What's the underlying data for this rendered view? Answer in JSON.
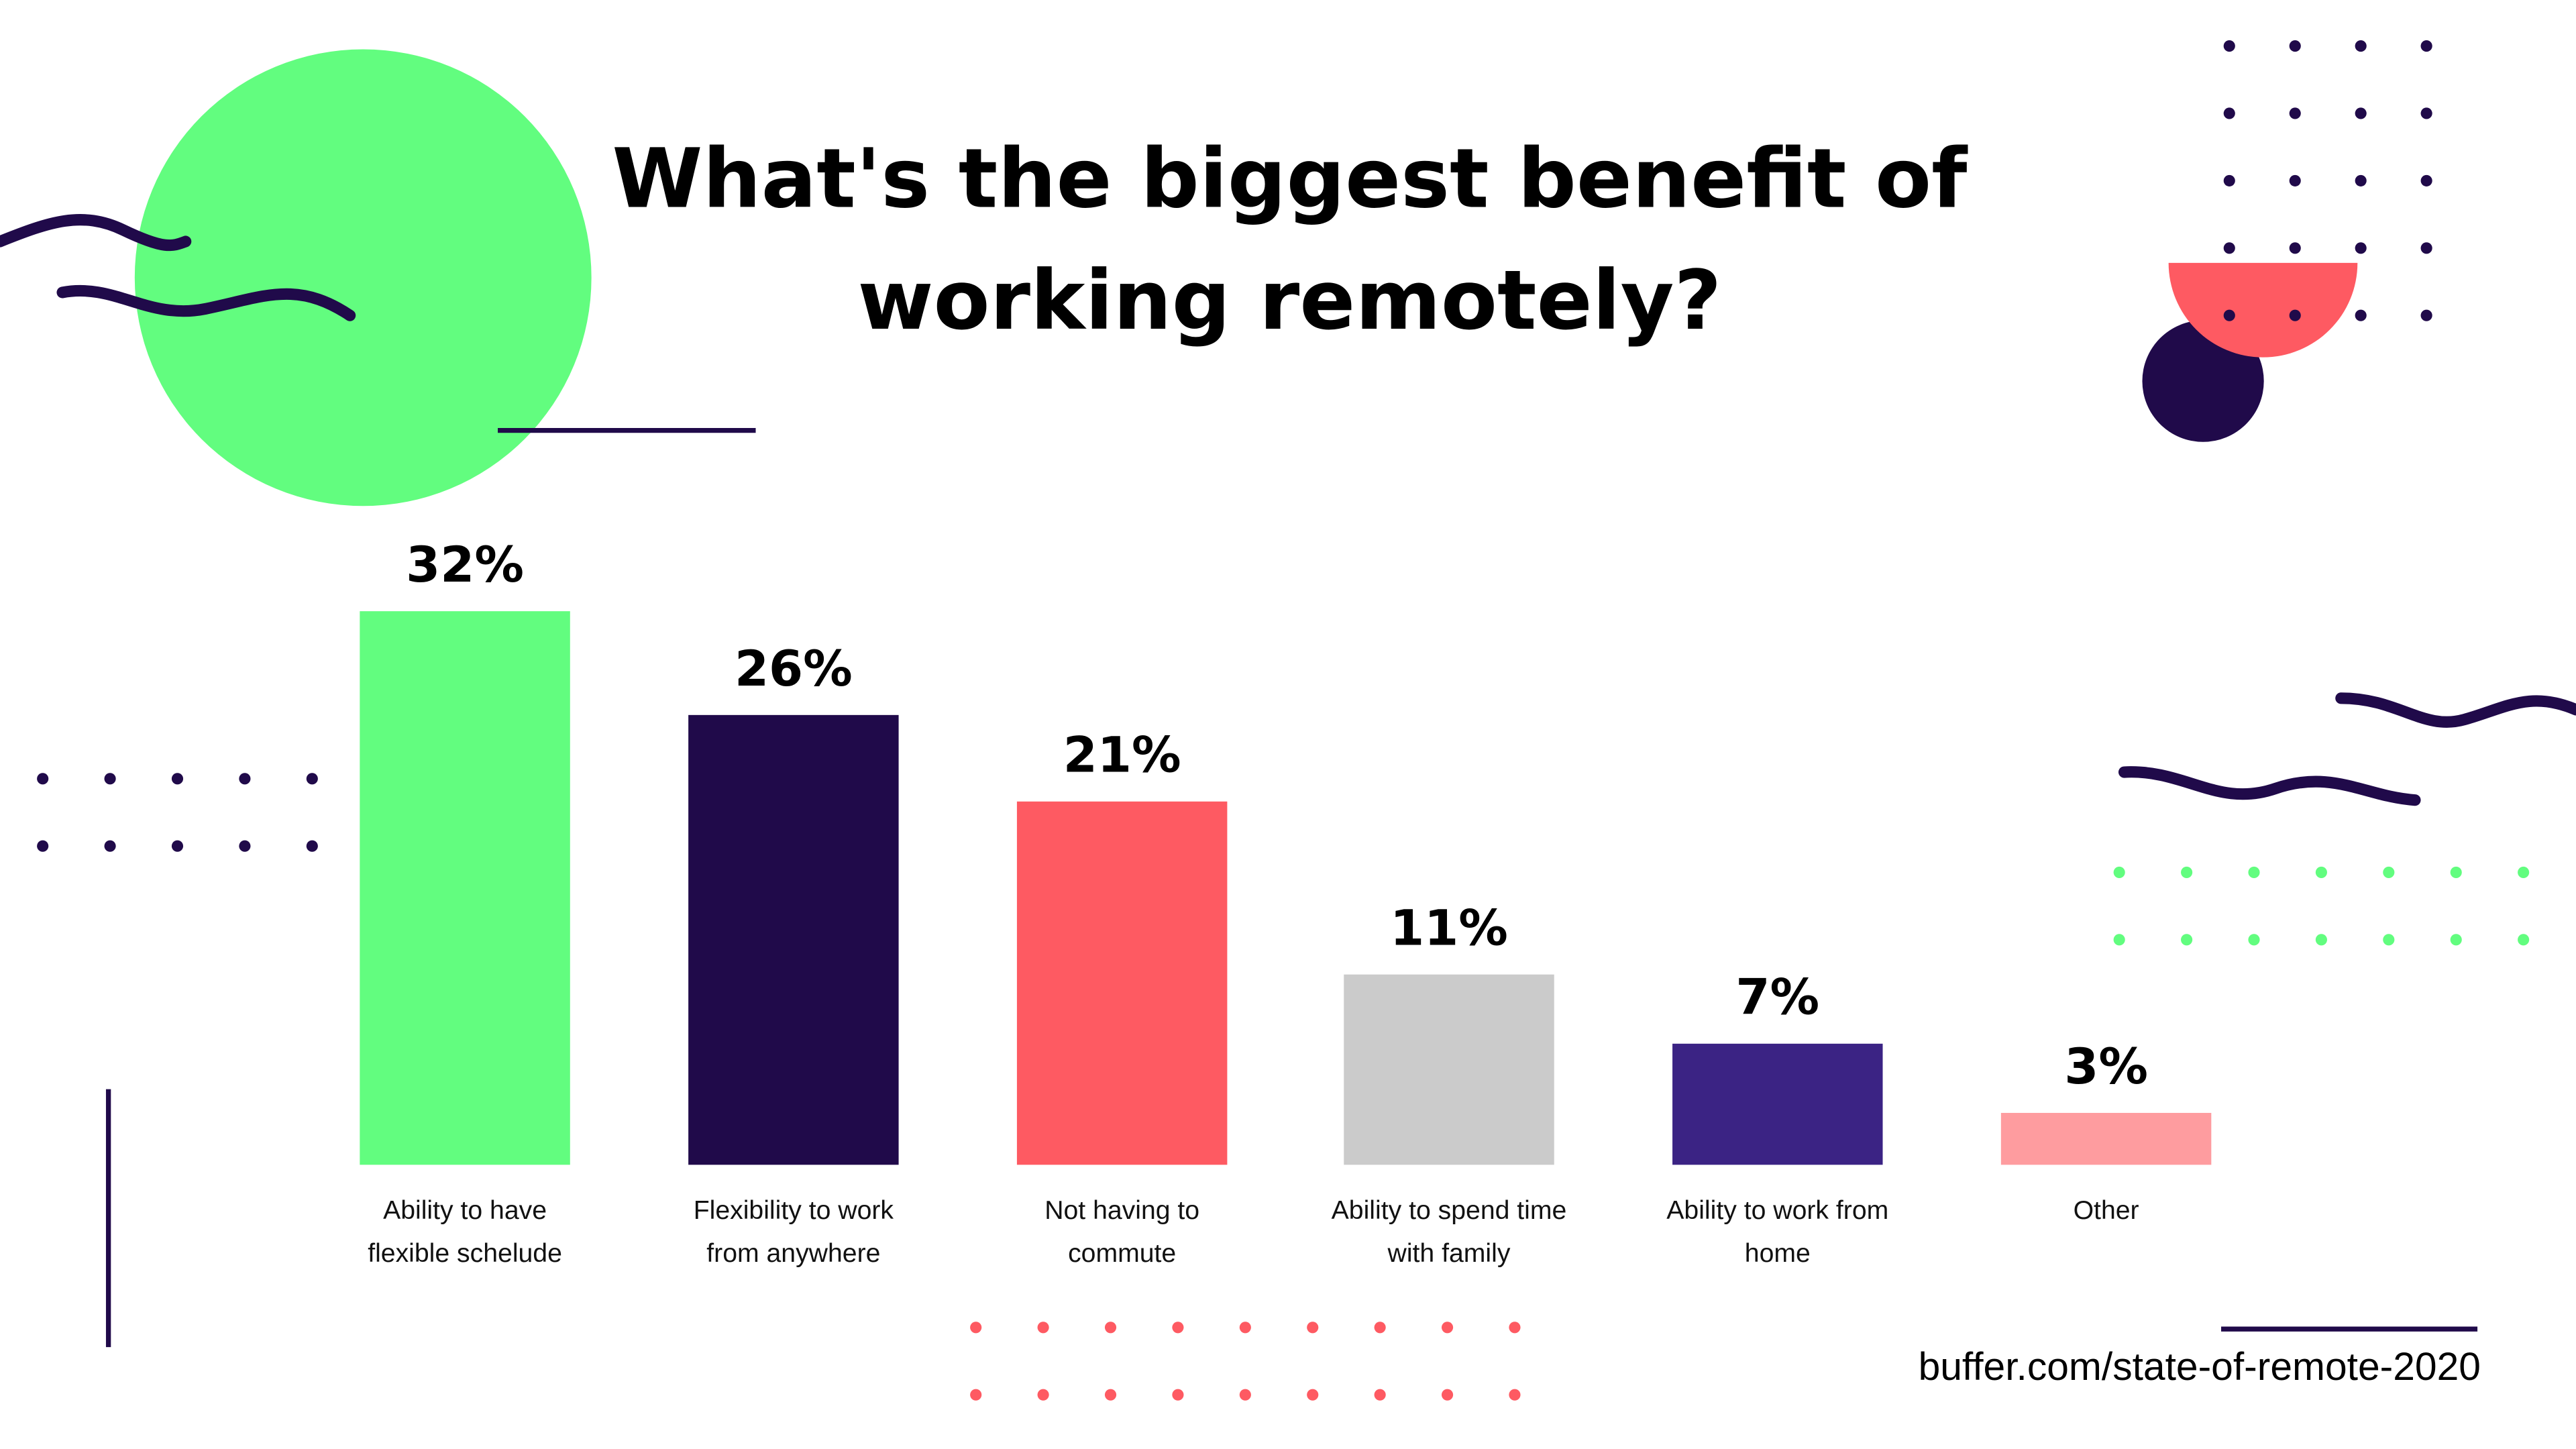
{
  "chart_data": {
    "type": "bar",
    "title": "What's the biggest benefit of working remotely?",
    "categories": [
      "Ability to have flexible schelude",
      "Flexibility to work from anywhere",
      "Not having to commute",
      "Ability to spend time with family",
      "Ability to work from home",
      "Other"
    ],
    "values": [
      32,
      26,
      21,
      11,
      7,
      3
    ],
    "value_labels": [
      "32%",
      "26%",
      "21%",
      "11%",
      "7%",
      "3%"
    ],
    "colors": [
      "#62fd7f",
      "#200a4a",
      "#fe5a62",
      "#cbcbcb",
      "#3b2384",
      "#fe9c9f"
    ],
    "source": "buffer.com/state-of-remote-2020"
  }
}
